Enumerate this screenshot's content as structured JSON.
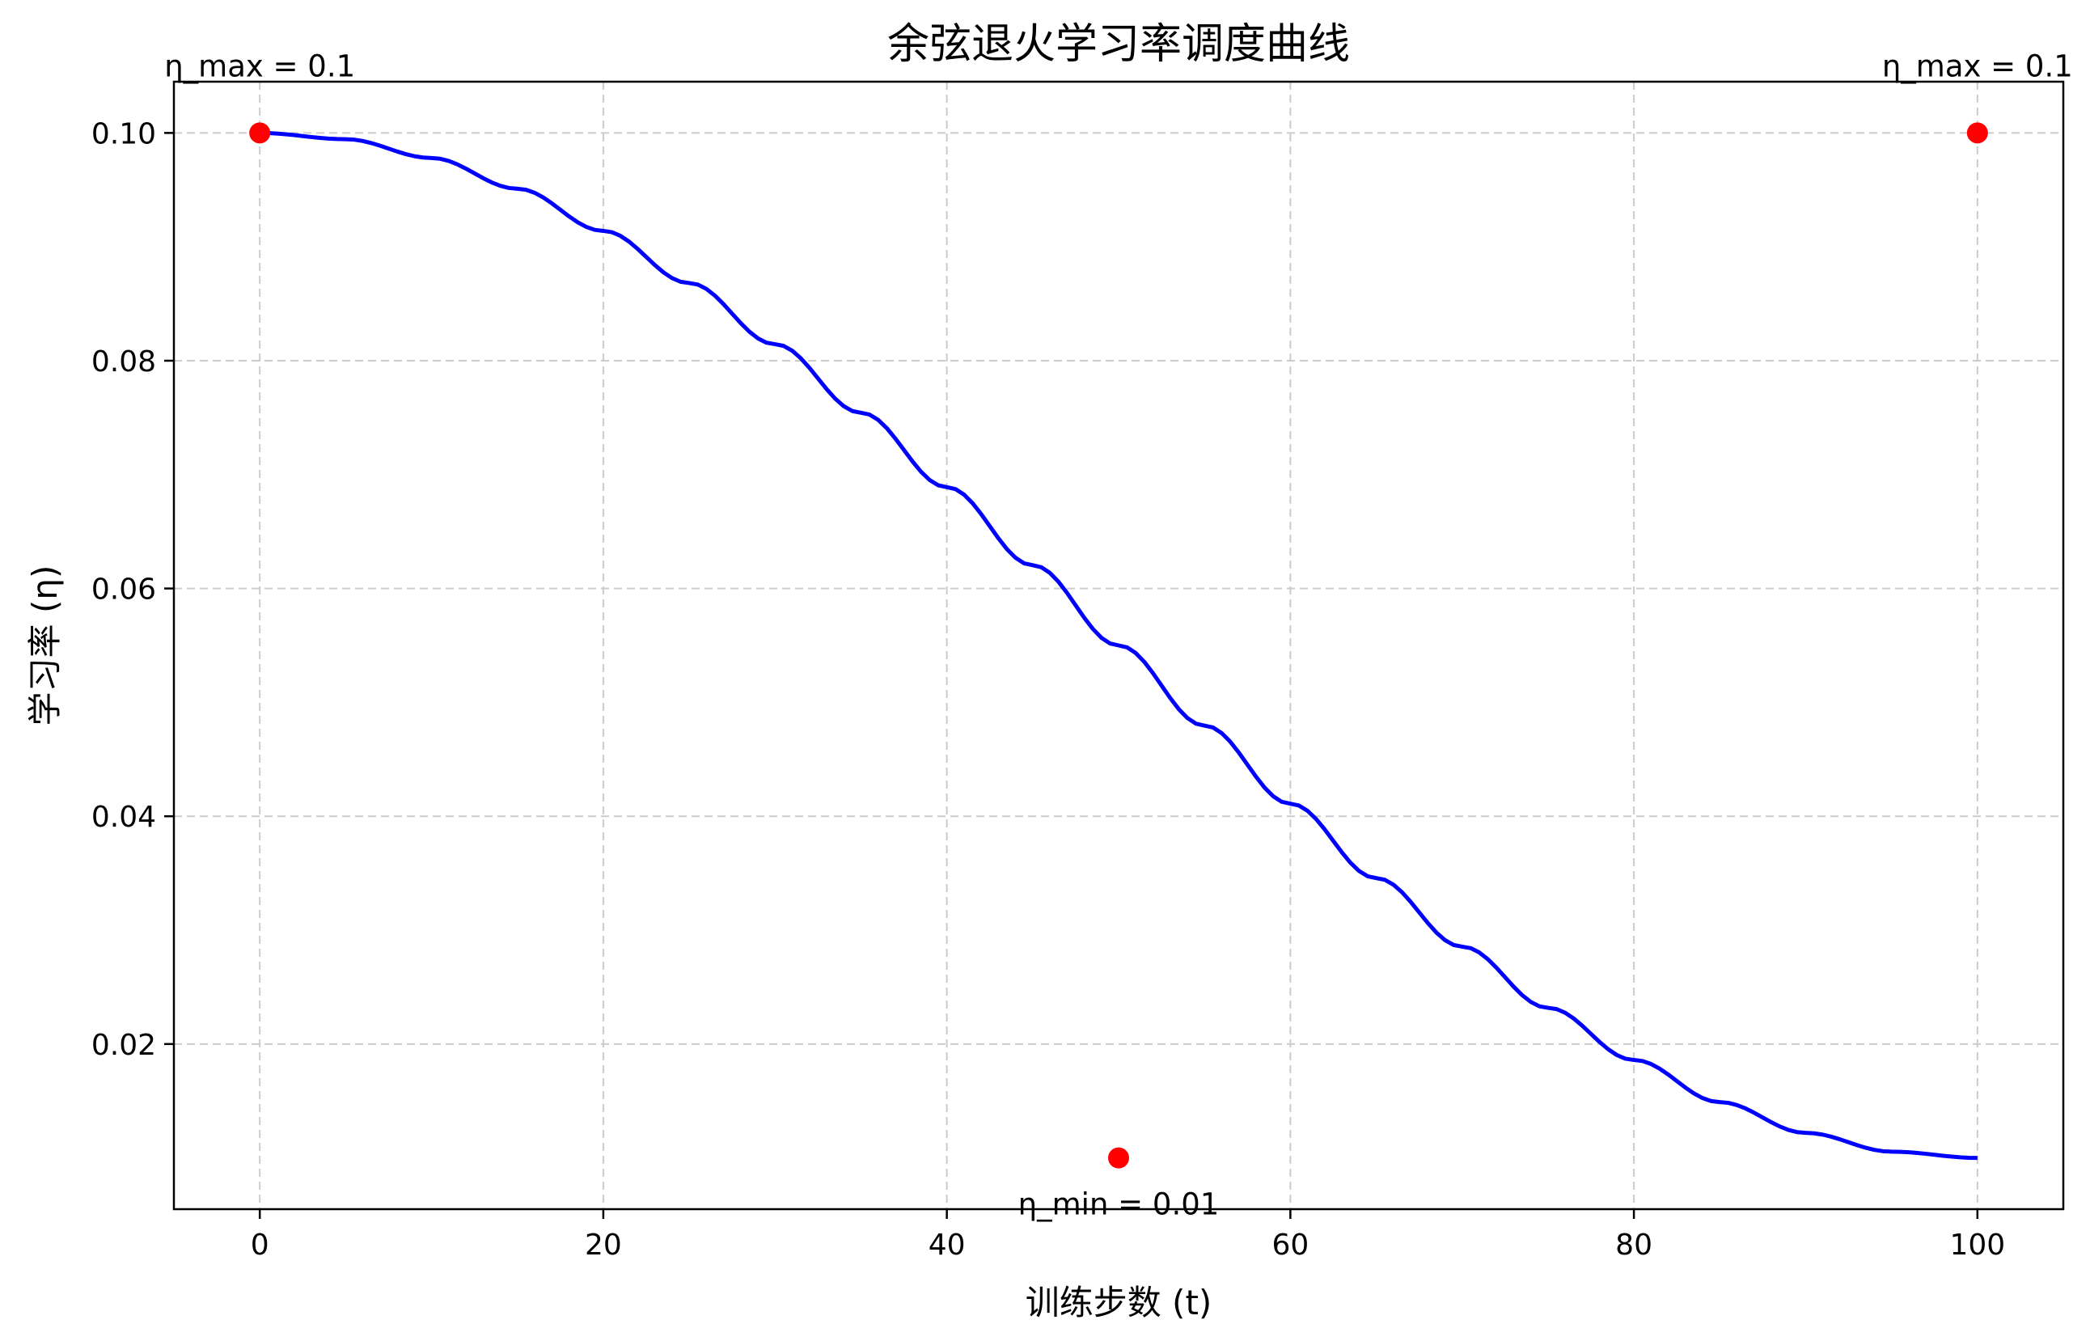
{
  "chart_data": {
    "type": "line",
    "title": "余弦退火学习率调度曲线",
    "xlabel": "训练步数 (t)",
    "ylabel": "学习率 (η)",
    "xlim": [
      -5,
      105
    ],
    "ylim": [
      0.0055,
      0.1045
    ],
    "xticks": [
      0,
      20,
      40,
      60,
      80,
      100
    ],
    "xtick_labels": [
      "0",
      "20",
      "40",
      "60",
      "80",
      "100"
    ],
    "yticks": [
      0.02,
      0.04,
      0.06,
      0.08,
      0.1
    ],
    "ytick_labels": [
      "0.02",
      "0.04",
      "0.06",
      "0.08",
      "0.10"
    ],
    "grid": true,
    "series": [
      {
        "color": "#0000ff",
        "x": [
          0,
          5,
          10,
          15,
          20,
          25,
          30,
          35,
          40,
          45,
          50,
          55,
          60,
          65,
          70,
          75,
          80,
          85,
          90,
          95,
          100
        ],
        "y": [
          0.1,
          0.09945,
          0.0978,
          0.0951,
          0.0914,
          0.08682,
          0.08145,
          0.07543,
          0.0689,
          0.06204,
          0.055,
          0.04796,
          0.0411,
          0.03457,
          0.02855,
          0.02318,
          0.0186,
          0.0149,
          0.0122,
          0.01055,
          0.01
        ]
      }
    ],
    "scatter": {
      "color": "#ff0000",
      "points": [
        {
          "x": 0,
          "y": 0.1
        },
        {
          "x": 100,
          "y": 0.1
        },
        {
          "x": 50,
          "y": 0.01
        }
      ]
    },
    "annotations": [
      {
        "text": "η_max = 0.1",
        "x": 0,
        "y": 0.1
      },
      {
        "text": "η_max = 0.1",
        "x": 100,
        "y": 0.1
      },
      {
        "text": "η_min = 0.01",
        "x": 50,
        "y": 0.01
      }
    ],
    "colors": {
      "line": "#0000ff",
      "markers": "#ff0000",
      "grid": "#cccccc",
      "axes": "#000000"
    }
  }
}
